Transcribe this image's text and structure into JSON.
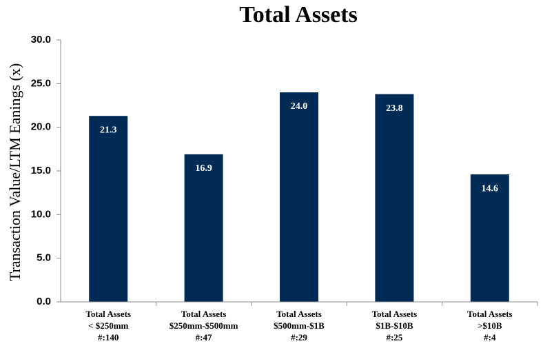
{
  "chart_data": {
    "type": "bar",
    "title": "Total Assets",
    "y_label": "Transaction Value/LTM Eanings (x)",
    "categories": [
      [
        "Total Assets",
        "< $250mm",
        "#:140"
      ],
      [
        "Total Assets",
        "$250mm-$500mm",
        "#:47"
      ],
      [
        "Total Assets",
        "$500mm-$1B",
        "#:29"
      ],
      [
        "Total Assets",
        "$1B-$10B",
        "#:25"
      ],
      [
        "Total Assets",
        ">$10B",
        "#:4"
      ]
    ],
    "values": [
      21.3,
      16.9,
      24.0,
      23.8,
      14.6
    ],
    "value_labels": [
      "21.3",
      "16.9",
      "24.0",
      "23.8",
      "14.6"
    ],
    "color": "#002b55",
    "ylim": [
      0,
      30
    ],
    "yticks": [
      {
        "value": 0,
        "label": "0.0"
      },
      {
        "value": 5,
        "label": "5.0"
      },
      {
        "value": 10,
        "label": "10.0"
      },
      {
        "value": 15,
        "label": "15.0"
      },
      {
        "value": 20,
        "label": "20.0"
      },
      {
        "value": 25,
        "label": "25.0"
      },
      {
        "value": 30,
        "label": "30.0"
      }
    ]
  }
}
